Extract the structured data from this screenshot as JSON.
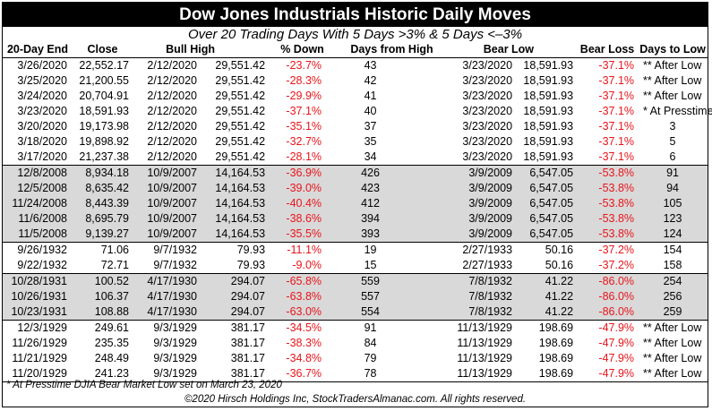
{
  "title": "Dow Jones Industrials Historic Daily Moves",
  "subtitle": "Over 20 Trading Days With 5 Days >3% & 5 Days <–3%",
  "headers": {
    "end": "20-Day End",
    "close": "Close",
    "bull_high": "Bull High",
    "pct_down": "% Down",
    "days_from_high": "Days from High",
    "bear_low": "Bear Low",
    "bear_loss": "Bear Loss",
    "days_to_low": "Days to Low"
  },
  "rows": [
    {
      "end": "3/26/2020",
      "close": "22,552.17",
      "high_date": "2/12/2020",
      "high": "29,551.42",
      "pct_down": "-23.7%",
      "days_high": "43",
      "low_date": "3/23/2020",
      "low": "18,591.93",
      "loss": "-37.1%",
      "days_low": "** After Low",
      "shade": false
    },
    {
      "end": "3/25/2020",
      "close": "21,200.55",
      "high_date": "2/12/2020",
      "high": "29,551.42",
      "pct_down": "-28.3%",
      "days_high": "42",
      "low_date": "3/23/2020",
      "low": "18,591.93",
      "loss": "-37.1%",
      "days_low": "** After Low",
      "shade": false
    },
    {
      "end": "3/24/2020",
      "close": "20,704.91",
      "high_date": "2/12/2020",
      "high": "29,551.42",
      "pct_down": "-29.9%",
      "days_high": "41",
      "low_date": "3/23/2020",
      "low": "18,591.93",
      "loss": "-37.1%",
      "days_low": "** After Low",
      "shade": false
    },
    {
      "end": "3/23/2020",
      "close": "18,591.93",
      "high_date": "2/12/2020",
      "high": "29,551.42",
      "pct_down": "-37.1%",
      "days_high": "40",
      "low_date": "3/23/2020",
      "low": "18,591.93",
      "loss": "-37.1%",
      "days_low": "* At Presstime",
      "shade": false
    },
    {
      "end": "3/20/2020",
      "close": "19,173.98",
      "high_date": "2/12/2020",
      "high": "29,551.42",
      "pct_down": "-35.1%",
      "days_high": "37",
      "low_date": "3/23/2020",
      "low": "18,591.93",
      "loss": "-37.1%",
      "days_low": "3",
      "shade": false
    },
    {
      "end": "3/18/2020",
      "close": "19,898.92",
      "high_date": "2/12/2020",
      "high": "29,551.42",
      "pct_down": "-32.7%",
      "days_high": "35",
      "low_date": "3/23/2020",
      "low": "18,591.93",
      "loss": "-37.1%",
      "days_low": "5",
      "shade": false
    },
    {
      "end": "3/17/2020",
      "close": "21,237.38",
      "high_date": "2/12/2020",
      "high": "29,551.42",
      "pct_down": "-28.1%",
      "days_high": "34",
      "low_date": "3/23/2020",
      "low": "18,591.93",
      "loss": "-37.1%",
      "days_low": "6",
      "shade": false,
      "grp_end": true
    },
    {
      "end": "12/8/2008",
      "close": "8,934.18",
      "high_date": "10/9/2007",
      "high": "14,164.53",
      "pct_down": "-36.9%",
      "days_high": "426",
      "low_date": "3/9/2009",
      "low": "6,547.05",
      "loss": "-53.8%",
      "days_low": "91",
      "shade": true
    },
    {
      "end": "12/5/2008",
      "close": "8,635.42",
      "high_date": "10/9/2007",
      "high": "14,164.53",
      "pct_down": "-39.0%",
      "days_high": "423",
      "low_date": "3/9/2009",
      "low": "6,547.05",
      "loss": "-53.8%",
      "days_low": "94",
      "shade": true
    },
    {
      "end": "11/24/2008",
      "close": "8,443.39",
      "high_date": "10/9/2007",
      "high": "14,164.53",
      "pct_down": "-40.4%",
      "days_high": "412",
      "low_date": "3/9/2009",
      "low": "6,547.05",
      "loss": "-53.8%",
      "days_low": "105",
      "shade": true
    },
    {
      "end": "11/6/2008",
      "close": "8,695.79",
      "high_date": "10/9/2007",
      "high": "14,164.53",
      "pct_down": "-38.6%",
      "days_high": "394",
      "low_date": "3/9/2009",
      "low": "6,547.05",
      "loss": "-53.8%",
      "days_low": "123",
      "shade": true
    },
    {
      "end": "11/5/2008",
      "close": "9,139.27",
      "high_date": "10/9/2007",
      "high": "14,164.53",
      "pct_down": "-35.5%",
      "days_high": "393",
      "low_date": "3/9/2009",
      "low": "6,547.05",
      "loss": "-53.8%",
      "days_low": "124",
      "shade": true,
      "grp_end": true
    },
    {
      "end": "9/26/1932",
      "close": "71.06",
      "high_date": "9/7/1932",
      "high": "79.93",
      "pct_down": "-11.1%",
      "days_high": "19",
      "low_date": "2/27/1933",
      "low": "50.16",
      "loss": "-37.2%",
      "days_low": "154",
      "shade": false
    },
    {
      "end": "9/22/1932",
      "close": "72.71",
      "high_date": "9/7/1932",
      "high": "79.93",
      "pct_down": "-9.0%",
      "days_high": "15",
      "low_date": "2/27/1933",
      "low": "50.16",
      "loss": "-37.2%",
      "days_low": "158",
      "shade": false,
      "grp_end": true
    },
    {
      "end": "10/28/1931",
      "close": "100.52",
      "high_date": "4/17/1930",
      "high": "294.07",
      "pct_down": "-65.8%",
      "days_high": "559",
      "low_date": "7/8/1932",
      "low": "41.22",
      "loss": "-86.0%",
      "days_low": "254",
      "shade": true
    },
    {
      "end": "10/26/1931",
      "close": "106.37",
      "high_date": "4/17/1930",
      "high": "294.07",
      "pct_down": "-63.8%",
      "days_high": "557",
      "low_date": "7/8/1932",
      "low": "41.22",
      "loss": "-86.0%",
      "days_low": "256",
      "shade": true
    },
    {
      "end": "10/23/1931",
      "close": "108.88",
      "high_date": "4/17/1930",
      "high": "294.07",
      "pct_down": "-63.0%",
      "days_high": "554",
      "low_date": "7/8/1932",
      "low": "41.22",
      "loss": "-86.0%",
      "days_low": "259",
      "shade": true,
      "grp_end": true
    },
    {
      "end": "12/3/1929",
      "close": "249.61",
      "high_date": "9/3/1929",
      "high": "381.17",
      "pct_down": "-34.5%",
      "days_high": "91",
      "low_date": "11/13/1929",
      "low": "198.69",
      "loss": "-47.9%",
      "days_low": "** After Low",
      "shade": false
    },
    {
      "end": "11/26/1929",
      "close": "235.35",
      "high_date": "9/3/1929",
      "high": "381.17",
      "pct_down": "-38.3%",
      "days_high": "84",
      "low_date": "11/13/1929",
      "low": "198.69",
      "loss": "-47.9%",
      "days_low": "** After Low",
      "shade": false
    },
    {
      "end": "11/21/1929",
      "close": "248.49",
      "high_date": "9/3/1929",
      "high": "381.17",
      "pct_down": "-34.8%",
      "days_high": "79",
      "low_date": "11/13/1929",
      "low": "198.69",
      "loss": "-47.9%",
      "days_low": "** After Low",
      "shade": false
    },
    {
      "end": "11/20/1929",
      "close": "241.23",
      "high_date": "9/3/1929",
      "high": "381.17",
      "pct_down": "-36.7%",
      "days_high": "78",
      "low_date": "11/13/1929",
      "low": "198.69",
      "loss": "-47.9%",
      "days_low": "** After Low",
      "shade": false,
      "grp_end": true
    }
  ],
  "footnote": "* At Presstime DJIA Bear Market Low set on March 23, 2020",
  "copyright": "©2020 Hirsch Holdings Inc, StockTradersAlmanac.com. All rights reserved.",
  "colors": {
    "negative": "#e8151b",
    "shade": "#d9d9d9",
    "title_bg": "#000000"
  }
}
